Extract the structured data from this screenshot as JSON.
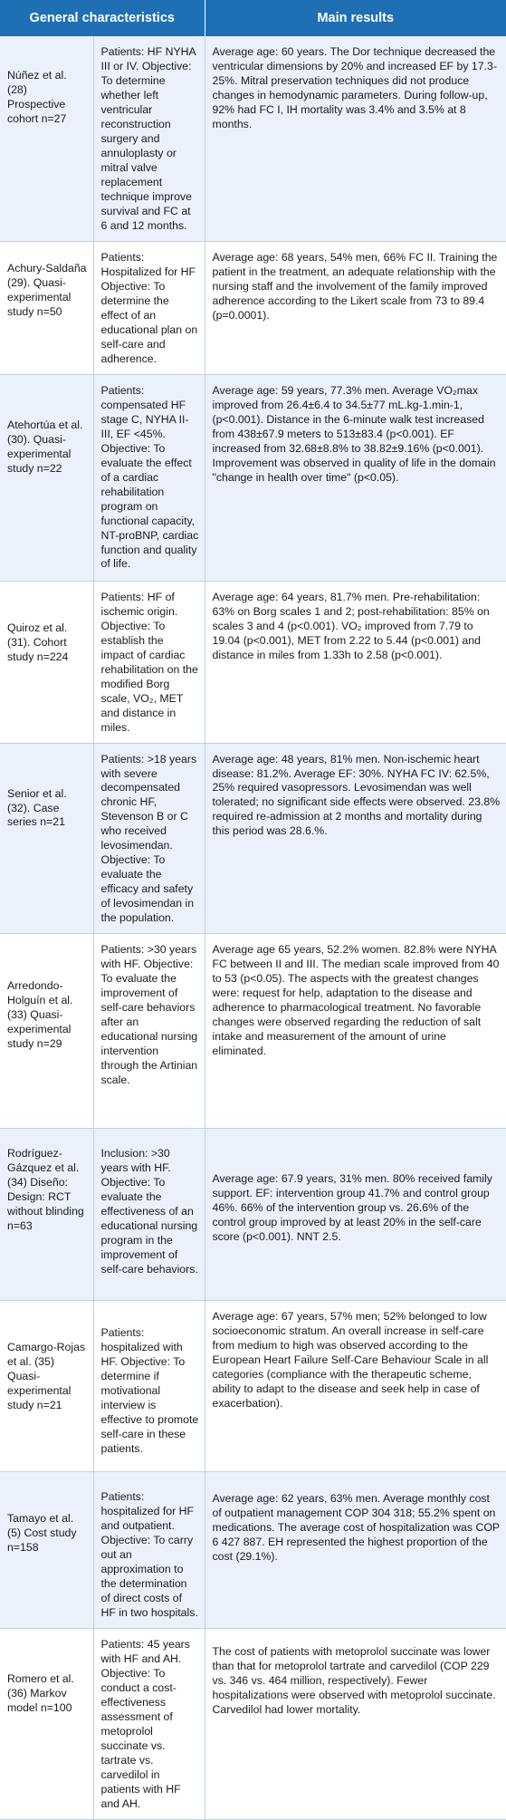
{
  "header": {
    "col_characteristics": "General characteristics",
    "col_results": "Main results"
  },
  "rows": [
    {
      "study": "Núñez et al. (28) Prospective cohort n=27",
      "characteristics": "Patients: HF NYHA III or IV. Objective: To determine whether left ventricular reconstruction surgery and annuloplasty or mitral valve replacement technique improve survival and FC at 6 and 12 months.",
      "results": "Average age: 60 years. The Dor technique decreased the ventricular dimensions by 20% and increased EF by 17.3-25%. Mitral preservation techniques did not produce changes in hemodynamic parameters. During follow-up, 92% had FC I, IH mortality was 3.4% and 3.5% at 8 months."
    },
    {
      "study": "Achury-Saldaña (29). Quasi-experimental study n=50",
      "characteristics": "Patients: Hospitalized for HF Objective: To determine the effect of an educational plan on self-care and adherence.",
      "results": "Average age: 68 years, 54% men, 66% FC II. Training the patient in the treatment, an adequate relationship with the nursing staff and the involvement of the family improved adherence according to the Likert scale from 73 to 89.4 (p=0.0001)."
    },
    {
      "study": "Atehortúa et al. (30). Quasi-experimental study n=22",
      "characteristics": "Patients: compensated HF stage C, NYHA II-III, EF <45%. Objective: To evaluate the effect of a cardiac rehabilitation program on functional capacity, NT-proBNP, cardiac function and quality of life.",
      "results": "Average age: 59 years, 77.3% men. Average VO₂max improved from 26.4±6.4 to 34.5±77 mL.kg-1.min-1, (p<0.001). Distance in the 6-minute walk test increased from 438±67.9 meters to 513±83.4 (p<0.001). EF increased from 32.68±8.8% to 38.82±9.16% (p<0.001). Improvement was observed in quality of life in the domain \"change in health over time\" (p<0.05)."
    },
    {
      "study": "Quiroz et al. (31). Cohort study n=224",
      "characteristics": "Patients: HF of ischemic origin. Objective: To establish the impact of cardiac rehabilitation on the modified Borg scale, VO₂, MET and distance in miles.",
      "results": "Average age: 64 years, 81.7% men. Pre-rehabilitation: 63% on Borg scales 1 and 2; post-rehabilitation: 85% on scales 3 and 4 (p<0.001). VO₂ improved from 7.79 to 19.04 (p<0.001), MET from 2.22 to 5.44 (p<0.001) and distance in miles from 1.33h to 2.58 (p<0.001)."
    },
    {
      "study": "Senior et al. (32). Case series n=21",
      "characteristics": "Patients: >18 years with severe decompensated chronic HF, Stevenson B or C who received levosimendan. Objective: To evaluate the efficacy and safety of levosimendan in the population.",
      "results": "Average age: 48 years, 81% men. Non-ischemic heart disease: 81.2%. Average EF: 30%. NYHA FC IV: 62.5%, 25% required vasopressors. Levosimendan was well tolerated; no significant side effects were observed. 23.8% required re-admission at 2 months and mortality during this period was 28.6.%."
    },
    {
      "study": "Arredondo-Holguín et al. (33) Quasi-experimental study n=29",
      "characteristics": "Patients: >30 years with HF. Objective: To evaluate the improvement of self-care behaviors after an educational nursing intervention through the Artinian scale.",
      "results": "Average age 65 years, 52.2% women. 82.8% were NYHA FC between II and III. The median scale improved from 40 to 53 (p<0.05). The aspects with the greatest changes were: request for help, adaptation to the disease and adherence to pharmacological treatment. No favorable changes were observed regarding the reduction of salt intake and measurement of the amount of urine eliminated."
    },
    {
      "study": "Rodríguez-Gázquez et al. (34) Diseño: Design: RCT without blinding n=63",
      "characteristics": "Inclusion: >30 years with HF. Objective: To evaluate the effectiveness of an educational nursing program in the improvement of self-care behaviors.",
      "results": "Average age: 67.9 years, 31% men. 80% received family support. EF: intervention group 41.7% and control group 46%. 66% of the intervention group vs. 26.6% of the control group improved by at least 20% in the self-care score (p<0.001). NNT 2.5."
    },
    {
      "study": "Camargo-Rojas et al. (35) Quasi-experimental study n=21",
      "characteristics": "Patients: hospitalized with HF. Objective: To determine if motivational interview is effective to promote self-care in these patients.",
      "results": "Average age: 67 years, 57% men; 52% belonged to low socioeconomic stratum. An overall increase in self-care from medium to high was observed according to the European Heart Failure Self-Care Behaviour Scale in all categories (compliance with the therapeutic scheme, ability to adapt to the disease and seek help in case of exacerbation)."
    },
    {
      "study": "Tamayo et al. (5) Cost study n=158",
      "characteristics": "Patients: hospitalized for HF and outpatient. Objective: To carry out an approximation to the determination of direct costs of HF in two hospitals.",
      "results": "Average age: 62 years, 63% men. Average monthly cost of outpatient management COP 304 318; 55.2% spent on medications. The average cost of hospitalization was COP 6 427 887. EH represented the highest proportion of the cost (29.1%)."
    },
    {
      "study": "Romero et al. (36) Markov model n=100",
      "characteristics": "Patients: 45 years with HF and AH. Objective: To conduct a cost-effectiveness assessment of metoprolol succinate vs. tartrate vs. carvedilol in patients with HF and AH.",
      "results": "The cost of patients with metoprolol succinate was lower than that for metoprolol tartrate and carvedilol (COP 229 vs. 346 vs. 464 million, respectively). Fewer hospitalizations were observed with metoprolol succinate. Carvedilol had lower mortality."
    }
  ]
}
